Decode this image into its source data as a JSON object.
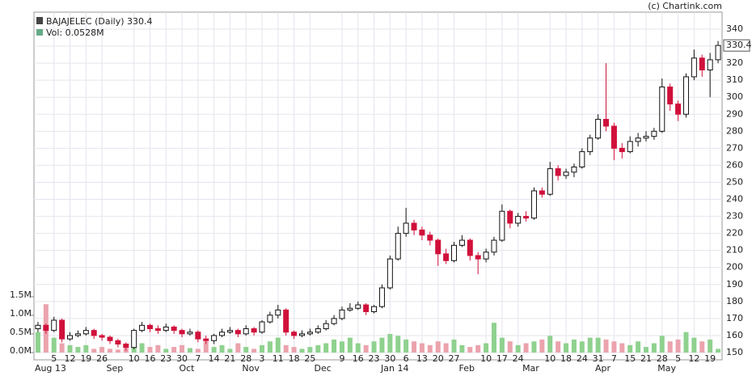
{
  "chart_data": {
    "type": "candlestick",
    "title": "BAJAJELEC (Daily) 330.4",
    "volume_label": "Vol: 0.0528M",
    "credit": "(c) Chartink.com",
    "up_color": "#ffffff",
    "down_color": "#d0103a",
    "volume_up_color": "#8fd18f",
    "volume_down_color": "#eba3ad",
    "grid": true,
    "categories": [
      null,
      null,
      "5",
      null,
      "12",
      null,
      "19",
      null,
      "26",
      null,
      null,
      null,
      "10",
      null,
      "16",
      null,
      "23",
      null,
      "30",
      null,
      "7",
      null,
      "14",
      null,
      "21",
      null,
      "28",
      null,
      "3",
      null,
      "11",
      null,
      "18",
      null,
      "25",
      null,
      null,
      null,
      "9",
      null,
      "16",
      null,
      "23",
      null,
      "30",
      null,
      "6",
      null,
      "13",
      null,
      "20",
      null,
      "27",
      null,
      null,
      null,
      "10",
      null,
      "17",
      null,
      "24",
      null,
      null,
      null,
      "10",
      null,
      "18",
      null,
      "24",
      null,
      "31",
      null,
      "7",
      null,
      "15",
      null,
      "21",
      null,
      "28",
      null,
      "5",
      null,
      "12",
      null,
      "19",
      null
    ],
    "months": [
      "Aug 13",
      null,
      null,
      null,
      null,
      null,
      null,
      null,
      null,
      null,
      "Sep",
      null,
      null,
      null,
      null,
      null,
      null,
      null,
      null,
      "Oct",
      null,
      null,
      null,
      null,
      null,
      null,
      null,
      "Nov",
      null,
      null,
      null,
      null,
      null,
      null,
      null,
      null,
      "Dec",
      null,
      null,
      null,
      null,
      null,
      null,
      null,
      null,
      "Jan 14",
      null,
      null,
      null,
      null,
      null,
      null,
      null,
      null,
      "Feb",
      null,
      null,
      null,
      null,
      null,
      null,
      null,
      "Mar",
      null,
      null,
      null,
      null,
      null,
      null,
      null,
      null,
      "Apr",
      null,
      null,
      null,
      null,
      null,
      null,
      null,
      "May",
      null,
      null,
      null,
      null,
      null,
      null
    ],
    "open": [
      164,
      166,
      163,
      169,
      158,
      160,
      161,
      163,
      160,
      159,
      157,
      155,
      153,
      163,
      166,
      164,
      163,
      165,
      163,
      161,
      162,
      158,
      157,
      160,
      162,
      163,
      161,
      164,
      162,
      168,
      172,
      175,
      162,
      160,
      161,
      162,
      164,
      167,
      170,
      175,
      176,
      178,
      174,
      177,
      188,
      205,
      220,
      226,
      222,
      219,
      216,
      208,
      204,
      213,
      216,
      207,
      205,
      209,
      216,
      233,
      226,
      230,
      229,
      245,
      243,
      258,
      254,
      256,
      259,
      268,
      276,
      287,
      283,
      270,
      268,
      274,
      276,
      277,
      280,
      306,
      296,
      290,
      312,
      323,
      316,
      322
    ],
    "high": [
      168,
      167,
      171,
      170,
      162,
      163,
      165,
      164,
      161,
      160,
      158,
      156,
      164,
      168,
      167,
      166,
      167,
      166,
      164,
      164,
      163,
      160,
      161,
      164,
      165,
      164,
      166,
      165,
      169,
      174,
      178,
      176,
      163,
      163,
      164,
      166,
      169,
      172,
      177,
      179,
      180,
      179,
      178,
      190,
      207,
      224,
      235,
      228,
      224,
      221,
      217,
      211,
      215,
      219,
      217,
      209,
      211,
      218,
      237,
      234,
      232,
      233,
      247,
      247,
      262,
      260,
      258,
      261,
      270,
      278,
      290,
      320,
      285,
      273,
      277,
      279,
      280,
      282,
      311,
      308,
      298,
      314,
      328,
      325,
      326,
      333
    ],
    "low": [
      162,
      161,
      162,
      156,
      157,
      159,
      160,
      158,
      157,
      155,
      153,
      151,
      152,
      162,
      162,
      161,
      162,
      161,
      159,
      160,
      156,
      155,
      155,
      159,
      161,
      159,
      160,
      160,
      161,
      167,
      170,
      160,
      158,
      159,
      160,
      161,
      163,
      166,
      169,
      174,
      175,
      172,
      173,
      176,
      187,
      204,
      218,
      219,
      216,
      213,
      201,
      202,
      203,
      212,
      204,
      196,
      203,
      207,
      215,
      223,
      224,
      227,
      228,
      241,
      242,
      251,
      252,
      253,
      258,
      266,
      275,
      280,
      263,
      264,
      267,
      271,
      274,
      275,
      279,
      292,
      286,
      288,
      310,
      312,
      300,
      320
    ],
    "close": [
      166,
      163,
      169,
      158,
      160,
      161,
      163,
      160,
      159,
      157,
      155,
      153,
      163,
      166,
      164,
      163,
      165,
      163,
      161,
      162,
      158,
      157,
      160,
      162,
      163,
      161,
      164,
      162,
      168,
      172,
      175,
      162,
      160,
      161,
      162,
      164,
      167,
      170,
      175,
      176,
      178,
      174,
      177,
      188,
      205,
      220,
      226,
      222,
      219,
      216,
      208,
      204,
      213,
      216,
      207,
      205,
      209,
      216,
      233,
      226,
      230,
      229,
      245,
      243,
      258,
      254,
      256,
      259,
      268,
      276,
      287,
      283,
      270,
      268,
      274,
      276,
      277,
      280,
      306,
      296,
      290,
      312,
      323,
      316,
      322,
      330.4
    ],
    "volume": [
      0.55,
      1.3,
      0.4,
      0.25,
      0.2,
      0.15,
      0.2,
      0.1,
      0.15,
      0.1,
      0.08,
      0.12,
      0.35,
      0.25,
      0.15,
      0.2,
      0.1,
      0.15,
      0.2,
      0.12,
      0.1,
      0.3,
      0.15,
      0.2,
      0.1,
      0.25,
      0.15,
      0.1,
      0.2,
      0.3,
      0.4,
      0.2,
      0.15,
      0.1,
      0.15,
      0.2,
      0.25,
      0.35,
      0.3,
      0.4,
      0.25,
      0.2,
      0.3,
      0.4,
      0.5,
      0.45,
      0.35,
      0.3,
      0.25,
      0.2,
      0.3,
      0.25,
      0.35,
      0.2,
      0.15,
      0.2,
      0.25,
      0.8,
      0.4,
      0.3,
      0.2,
      0.25,
      0.3,
      0.35,
      0.45,
      0.3,
      0.25,
      0.35,
      0.3,
      0.4,
      0.4,
      0.35,
      0.3,
      0.25,
      0.2,
      0.3,
      0.15,
      0.25,
      0.45,
      0.3,
      0.35,
      0.55,
      0.4,
      0.3,
      0.35,
      0.1
    ],
    "ylim": [
      150,
      340
    ],
    "yticks": [
      150,
      160,
      170,
      180,
      190,
      200,
      210,
      220,
      230,
      240,
      250,
      260,
      270,
      280,
      290,
      300,
      310,
      320,
      330,
      340
    ],
    "y2lim": [
      0,
      1.5
    ],
    "y2ticks": [
      {
        "value": 0,
        "label": "0.0M"
      },
      {
        "value": 0.5,
        "label": "0.5M"
      },
      {
        "value": 1,
        "label": "1.0M"
      },
      {
        "value": 1.5,
        "label": "1.5M"
      }
    ]
  }
}
